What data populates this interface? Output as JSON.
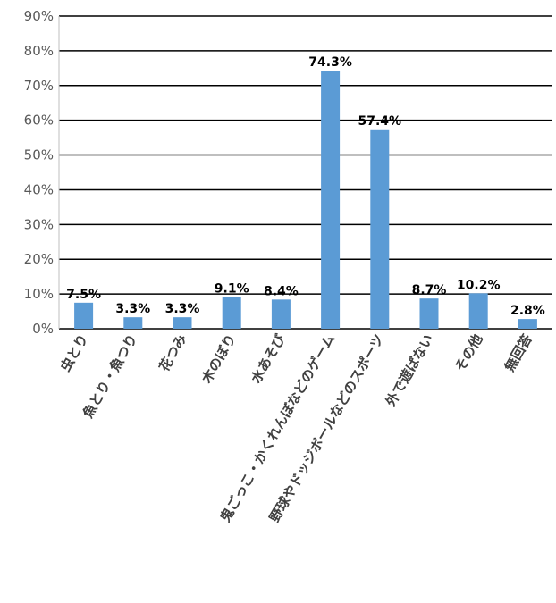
{
  "chart_data": {
    "type": "bar",
    "title": "",
    "xlabel": "",
    "ylabel": "",
    "ylim": [
      0,
      90
    ],
    "yticks": [
      0,
      10,
      20,
      30,
      40,
      50,
      60,
      70,
      80,
      90
    ],
    "ytick_labels": [
      "0%",
      "10%",
      "20%",
      "30%",
      "40%",
      "50%",
      "60%",
      "70%",
      "80%",
      "90%"
    ],
    "grid": true,
    "bar_color": "#5B9BD5",
    "categories": [
      "虫とり",
      "魚とり・魚つり",
      "花つみ",
      "木のぼり",
      "水あそび",
      "鬼ごっこ・かくれんぼなどのゲーム",
      "野球やドッジボールなどのスポーツ",
      "外で遊ばない",
      "その他",
      "無回答"
    ],
    "values": [
      7.5,
      3.3,
      3.3,
      9.1,
      8.4,
      74.3,
      57.4,
      8.7,
      10.2,
      2.8
    ],
    "value_labels": [
      "7.5%",
      "3.3%",
      "3.3%",
      "9.1%",
      "8.4%",
      "74.3%",
      "57.4%",
      "8.7%",
      "10.2%",
      "2.8%"
    ]
  }
}
